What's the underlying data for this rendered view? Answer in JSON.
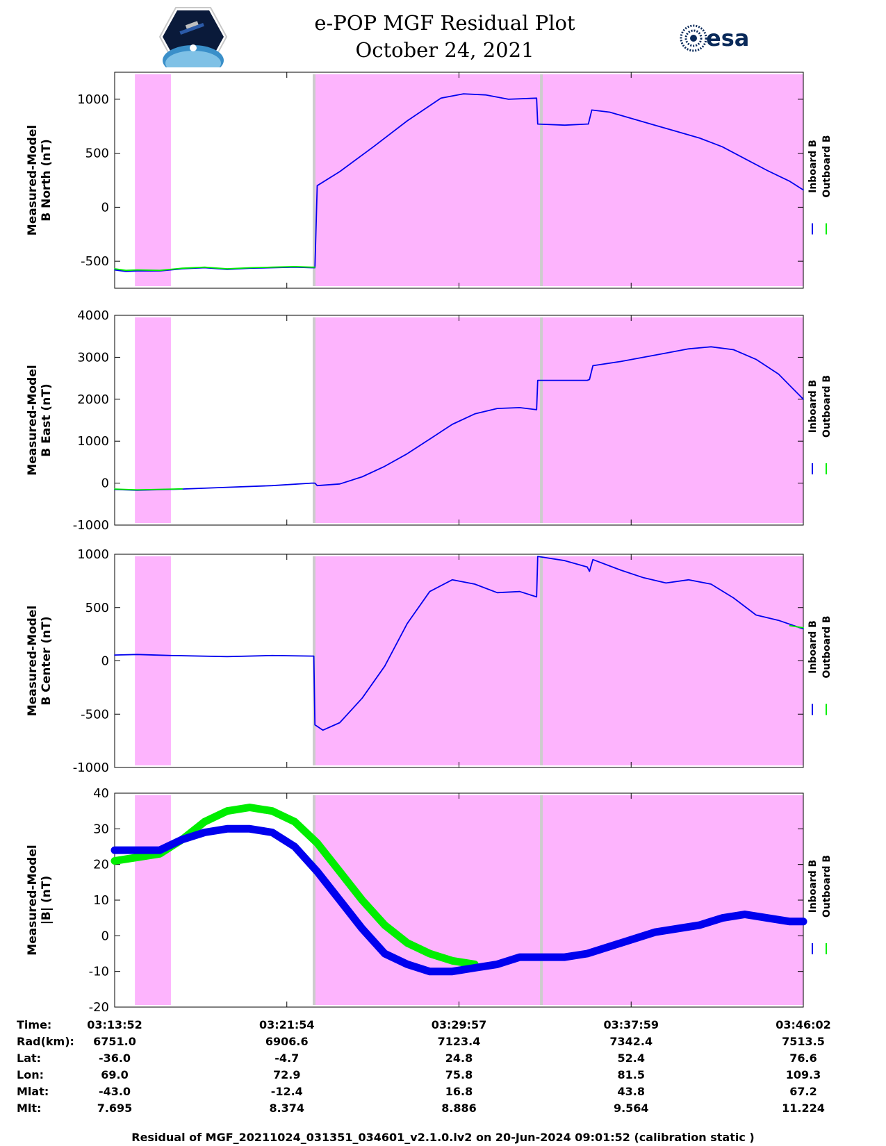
{
  "header": {
    "title": "e-POP MGF Residual Plot",
    "subtitle": "October 24, 2021",
    "logo_left": "cassiope-mission-logo",
    "logo_right_text": "esa"
  },
  "colors": {
    "inboard": "#0000ee",
    "outboard": "#00ee00",
    "shade": "#fdb4fd",
    "shade_edge": "#cccccc"
  },
  "chart_data": [
    {
      "type": "line",
      "ylabel": [
        "Measured-Model",
        "B North (nT)"
      ],
      "ylim": [
        -750,
        1250
      ],
      "yticks": [
        -500,
        0,
        500,
        1000
      ],
      "ytick_labels": [
        "-500",
        "0",
        "500",
        "1000"
      ],
      "legend": [
        "Inboard B",
        "Outboard B"
      ],
      "legend_placement": "right",
      "series": [
        {
          "name": "Inboard B",
          "points": [
            [
              0,
              -580
            ],
            [
              10,
              -595
            ],
            [
              20,
              -590
            ],
            [
              40,
              -590
            ],
            [
              60,
              -570
            ],
            [
              80,
              -560
            ],
            [
              100,
              -575
            ],
            [
              120,
              -565
            ],
            [
              140,
              -560
            ],
            [
              160,
              -555
            ],
            [
              175,
              -560
            ],
            [
              178,
              -560
            ],
            [
              180,
              200
            ],
            [
              200,
              330
            ],
            [
              230,
              560
            ],
            [
              260,
              800
            ],
            [
              290,
              1010
            ],
            [
              310,
              1050
            ],
            [
              330,
              1040
            ],
            [
              350,
              1000
            ],
            [
              375,
              1010
            ],
            [
              376,
              770
            ],
            [
              400,
              760
            ],
            [
              420,
              770
            ],
            [
              421,
              770
            ],
            [
              424,
              900
            ],
            [
              440,
              880
            ],
            [
              460,
              820
            ],
            [
              480,
              760
            ],
            [
              500,
              700
            ],
            [
              520,
              640
            ],
            [
              540,
              560
            ],
            [
              560,
              450
            ],
            [
              580,
              340
            ],
            [
              600,
              240
            ],
            [
              612,
              160
            ]
          ]
        },
        {
          "name": "Outboard B",
          "points": [
            [
              0,
              -570
            ],
            [
              10,
              -585
            ],
            [
              20,
              -580
            ],
            [
              40,
              -585
            ],
            [
              60,
              -565
            ],
            [
              80,
              -555
            ],
            [
              100,
              -570
            ],
            [
              120,
              -560
            ],
            [
              140,
              -555
            ],
            [
              160,
              -550
            ],
            [
              175,
              -555
            ],
            [
              178,
              -555
            ]
          ]
        }
      ],
      "shaded_intervals": [
        [
          18,
          50
        ],
        [
          176,
          378
        ],
        [
          378,
          612
        ]
      ]
    },
    {
      "type": "line",
      "ylabel": [
        "Measured-Model",
        "B East (nT)"
      ],
      "ylim": [
        -1000,
        4000
      ],
      "yticks": [
        -1000,
        0,
        1000,
        2000,
        3000,
        4000
      ],
      "ytick_labels": [
        "-1000",
        "0",
        "1000",
        "2000",
        "3000",
        "4000"
      ],
      "legend": [
        "Inboard B",
        "Outboard B"
      ],
      "legend_placement": "right",
      "series": [
        {
          "name": "Inboard B",
          "points": [
            [
              0,
              -150
            ],
            [
              20,
              -170
            ],
            [
              60,
              -140
            ],
            [
              100,
              -100
            ],
            [
              140,
              -60
            ],
            [
              175,
              0
            ],
            [
              178,
              0
            ],
            [
              180,
              -60
            ],
            [
              200,
              -20
            ],
            [
              220,
              150
            ],
            [
              240,
              400
            ],
            [
              260,
              700
            ],
            [
              280,
              1050
            ],
            [
              300,
              1400
            ],
            [
              320,
              1650
            ],
            [
              340,
              1780
            ],
            [
              360,
              1800
            ],
            [
              375,
              1750
            ],
            [
              376,
              2450
            ],
            [
              400,
              2450
            ],
            [
              420,
              2450
            ],
            [
              422,
              2470
            ],
            [
              425,
              2800
            ],
            [
              450,
              2900
            ],
            [
              480,
              3050
            ],
            [
              510,
              3200
            ],
            [
              530,
              3250
            ],
            [
              550,
              3180
            ],
            [
              570,
              2950
            ],
            [
              590,
              2600
            ],
            [
              612,
              2000
            ]
          ]
        },
        {
          "name": "Outboard B",
          "points": [
            [
              0,
              -140
            ],
            [
              20,
              -160
            ],
            [
              60,
              -135
            ]
          ]
        }
      ],
      "shaded_intervals": [
        [
          18,
          50
        ],
        [
          176,
          378
        ],
        [
          378,
          612
        ]
      ]
    },
    {
      "type": "line",
      "ylabel": [
        "Measured-Model",
        "B Center (nT)"
      ],
      "ylim": [
        -1000,
        1000
      ],
      "yticks": [
        -1000,
        -500,
        0,
        500,
        1000
      ],
      "ytick_labels": [
        "-1000",
        "-500",
        "0",
        "500",
        "1000"
      ],
      "legend": [
        "Inboard B",
        "Outboard B"
      ],
      "legend_placement": "right",
      "series": [
        {
          "name": "Inboard B",
          "points": [
            [
              0,
              55
            ],
            [
              20,
              60
            ],
            [
              50,
              50
            ],
            [
              100,
              40
            ],
            [
              140,
              50
            ],
            [
              175,
              45
            ],
            [
              177,
              45
            ],
            [
              178,
              -600
            ],
            [
              185,
              -650
            ],
            [
              200,
              -580
            ],
            [
              220,
              -350
            ],
            [
              240,
              -50
            ],
            [
              260,
              350
            ],
            [
              280,
              650
            ],
            [
              300,
              760
            ],
            [
              320,
              720
            ],
            [
              340,
              640
            ],
            [
              360,
              650
            ],
            [
              375,
              600
            ],
            [
              376,
              980
            ],
            [
              400,
              940
            ],
            [
              420,
              880
            ],
            [
              422,
              840
            ],
            [
              425,
              950
            ],
            [
              450,
              850
            ],
            [
              470,
              780
            ],
            [
              490,
              730
            ],
            [
              510,
              760
            ],
            [
              530,
              720
            ],
            [
              550,
              590
            ],
            [
              570,
              430
            ],
            [
              590,
              380
            ],
            [
              612,
              300
            ]
          ]
        },
        {
          "name": "Outboard B",
          "points": [
            [
              600,
              330
            ],
            [
              612,
              310
            ]
          ]
        }
      ],
      "shaded_intervals": [
        [
          18,
          50
        ],
        [
          176,
          378
        ],
        [
          378,
          612
        ]
      ]
    },
    {
      "type": "line",
      "ylabel": [
        "Measured-Model",
        "|B| (nT)"
      ],
      "ylim": [
        -20,
        40
      ],
      "yticks": [
        -20,
        -10,
        0,
        10,
        20,
        30,
        40
      ],
      "ytick_labels": [
        "-20",
        "-10",
        "0",
        "10",
        "20",
        "30",
        "40"
      ],
      "legend": [
        "Inboard B",
        "Outboard B"
      ],
      "legend_placement": "right",
      "series": [
        {
          "name": "Outboard B",
          "points": [
            [
              0,
              21
            ],
            [
              20,
              22
            ],
            [
              40,
              23
            ],
            [
              60,
              27
            ],
            [
              80,
              32
            ],
            [
              100,
              35
            ],
            [
              120,
              36
            ],
            [
              140,
              35
            ],
            [
              160,
              32
            ],
            [
              180,
              26
            ],
            [
              200,
              18
            ],
            [
              220,
              10
            ],
            [
              240,
              3
            ],
            [
              260,
              -2
            ],
            [
              280,
              -5
            ],
            [
              300,
              -7
            ],
            [
              320,
              -8
            ]
          ]
        },
        {
          "name": "Inboard B",
          "points": [
            [
              0,
              24
            ],
            [
              20,
              24
            ],
            [
              40,
              24
            ],
            [
              60,
              27
            ],
            [
              80,
              29
            ],
            [
              100,
              30
            ],
            [
              120,
              30
            ],
            [
              140,
              29
            ],
            [
              160,
              25
            ],
            [
              180,
              18
            ],
            [
              200,
              10
            ],
            [
              220,
              2
            ],
            [
              240,
              -5
            ],
            [
              260,
              -8
            ],
            [
              280,
              -10
            ],
            [
              300,
              -10
            ],
            [
              320,
              -9
            ],
            [
              340,
              -8
            ],
            [
              360,
              -6
            ],
            [
              380,
              -6
            ],
            [
              400,
              -6
            ],
            [
              420,
              -5
            ],
            [
              440,
              -3
            ],
            [
              460,
              -1
            ],
            [
              480,
              1
            ],
            [
              500,
              2
            ],
            [
              520,
              3
            ],
            [
              540,
              5
            ],
            [
              560,
              6
            ],
            [
              580,
              5
            ],
            [
              600,
              4
            ],
            [
              612,
              4
            ]
          ]
        }
      ],
      "shaded_intervals": [
        [
          18,
          50
        ],
        [
          176,
          378
        ],
        [
          378,
          612
        ]
      ]
    }
  ],
  "x_axis": {
    "xlim": [
      0,
      612
    ],
    "ticks": [
      0,
      153,
      306,
      459,
      612
    ]
  },
  "table": {
    "rows": [
      {
        "label": "Time:",
        "values": [
          "03:13:52",
          "03:21:54",
          "03:29:57",
          "03:37:59",
          "03:46:02"
        ]
      },
      {
        "label": "Rad(km):",
        "values": [
          "6751.0",
          "6906.6",
          "7123.4",
          "7342.4",
          "7513.5"
        ]
      },
      {
        "label": "Lat:",
        "values": [
          "-36.0",
          "-4.7",
          "24.8",
          "52.4",
          "76.6"
        ]
      },
      {
        "label": "Lon:",
        "values": [
          "69.0",
          "72.9",
          "75.8",
          "81.5",
          "109.3"
        ]
      },
      {
        "label": "Mlat:",
        "values": [
          "-43.0",
          "-12.4",
          "16.8",
          "43.8",
          "67.2"
        ]
      },
      {
        "label": "Mlt:",
        "values": [
          "7.695",
          "8.374",
          "8.886",
          "9.564",
          "11.224"
        ]
      }
    ]
  },
  "footer": "Residual of MGF_20211024_031351_034601_v2.1.0.lv2 on 20-Jun-2024 09:01:52 (calibration static )"
}
